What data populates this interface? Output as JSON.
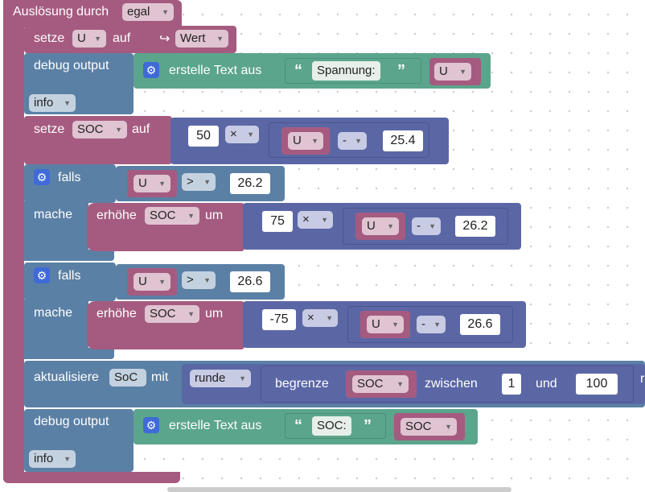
{
  "event": {
    "label": "Auslösung durch",
    "value": "egal"
  },
  "set_u": {
    "prefix": "setze",
    "var": "U",
    "mid": "auf",
    "arrow": "↪",
    "value": "Wert"
  },
  "debug1": {
    "label": "debug output",
    "text_label": "erstelle Text aus",
    "quote_open": "“",
    "quote_close": "”",
    "text": "Spannung:",
    "var": "U",
    "level": "info"
  },
  "set_soc": {
    "prefix": "setze",
    "var": "SOC",
    "mid": "auf",
    "factor": "50",
    "op_mul": "×",
    "var_u": "U",
    "op_minus": "-",
    "subtrahend": "25.4"
  },
  "if1": {
    "label": "falls",
    "var": "U",
    "op": ">",
    "value": "26.2",
    "do_label": "mache",
    "inc_label": "erhöhe",
    "inc_var": "SOC",
    "inc_mid": "um",
    "factor": "75",
    "op_mul": "×",
    "var_u": "U",
    "op_minus": "-",
    "subtrahend": "26.2"
  },
  "if2": {
    "label": "falls",
    "var": "U",
    "op": ">",
    "value": "26.6",
    "do_label": "mache",
    "inc_label": "erhöhe",
    "inc_var": "SOC",
    "inc_mid": "um",
    "factor": "-75",
    "op_mul": "×",
    "var_u": "U",
    "op_minus": "-",
    "subtrahend": "26.6"
  },
  "update": {
    "label": "aktualisiere",
    "state": "SoC",
    "mid": "mit",
    "round": "runde",
    "clamp": "begrenze",
    "var": "SOC",
    "between": "zwischen",
    "low": "1",
    "and": "und",
    "high": "100",
    "cut": "r"
  },
  "debug2": {
    "label": "debug output",
    "text_label": "erstelle Text aus",
    "quote_open": "“",
    "quote_close": "”",
    "text": "SOC:",
    "var": "SOC",
    "level": "info"
  },
  "icons": {
    "gear": "⚙",
    "dropdown": "▼"
  },
  "colors": {
    "event": "#a55b80",
    "debug": "#5b80a5",
    "text": "#5ba58c",
    "math": "#5b67a5",
    "variable": "#a55b80"
  }
}
